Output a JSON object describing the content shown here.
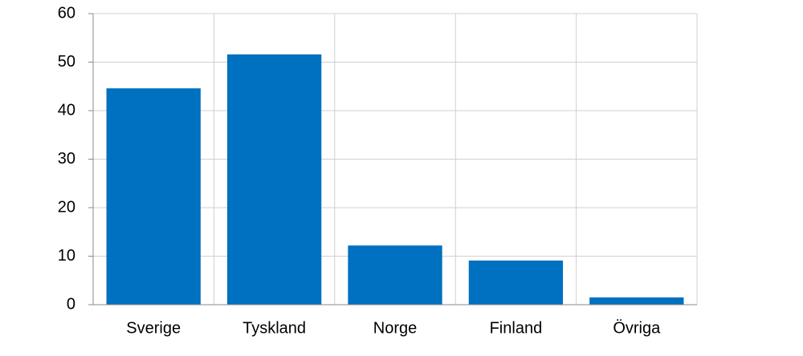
{
  "chart_data": {
    "type": "bar",
    "categories": [
      "Sverige",
      "Tyskland",
      "Norge",
      "Finland",
      "Övriga"
    ],
    "values": [
      44.6,
      51.6,
      12.2,
      9.1,
      1.5
    ],
    "color": "#0070c0",
    "ylim": [
      0,
      60
    ],
    "yticks": [
      0,
      10,
      20,
      30,
      40,
      50,
      60
    ],
    "grid": true
  }
}
